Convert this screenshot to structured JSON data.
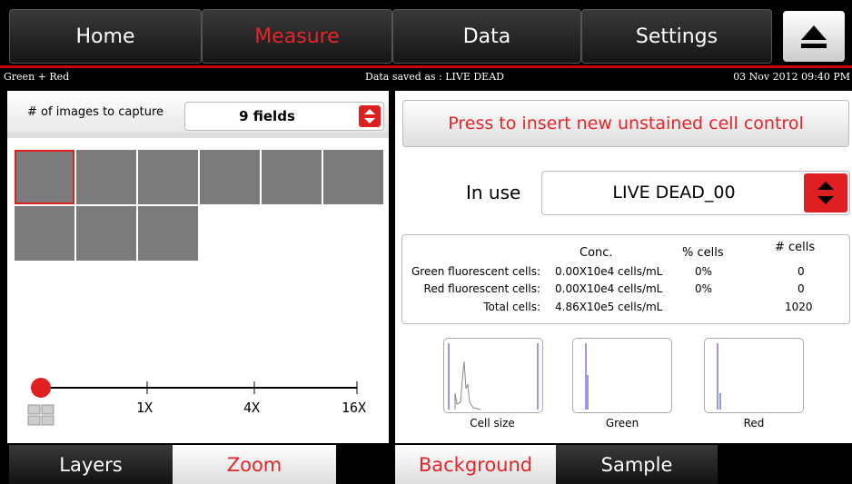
{
  "nav": {
    "tabs": [
      "Home",
      "Measure",
      "Data",
      "Settings"
    ]
  },
  "status": {
    "left": "Green + Red",
    "center": "Data saved as : LIVE DEAD",
    "right": "03 Nov 2012  09:40 PM"
  },
  "capture": {
    "label": "# of images to capture",
    "value": "9 fields"
  },
  "zoom": {
    "levels": [
      "1X",
      "4X",
      "16X"
    ]
  },
  "left_tabs": [
    "Layers",
    "Zoom"
  ],
  "insert_button": "Press to insert new unstained cell control",
  "in_use": {
    "label": "In use",
    "value": "LIVE DEAD_00"
  },
  "results": {
    "headers": [
      "Conc.",
      "% cells",
      "# cells"
    ],
    "rows": [
      {
        "label": "Green fluorescent cells:",
        "conc": "0.00X10e4 cells/mL",
        "percent": "0%",
        "count": "0"
      },
      {
        "label": "Red fluorescent cells:",
        "conc": "0.00X10e4 cells/mL",
        "percent": "0%",
        "count": "0"
      },
      {
        "label": "Total cells:",
        "conc": "4.86X10e5 cells/mL",
        "count": "1020"
      }
    ]
  },
  "histograms": [
    "Cell size",
    "Green",
    "Red"
  ],
  "right_tabs": [
    "Background",
    "Sample"
  ]
}
